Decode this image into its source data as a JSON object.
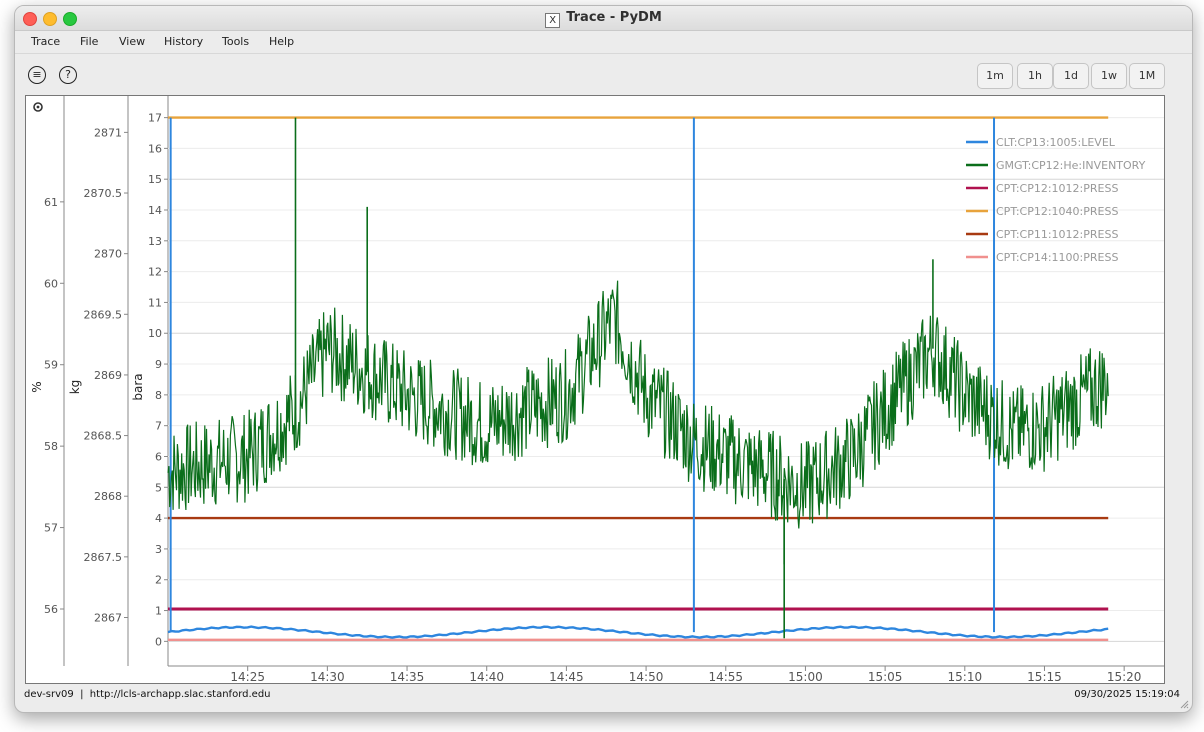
{
  "window": {
    "title": "Trace - PyDM",
    "x11_glyph": "X"
  },
  "menu": [
    "Trace",
    "File",
    "View",
    "History",
    "Tools",
    "Help"
  ],
  "toolbar": {
    "left_icons": [
      {
        "name": "comment-icon",
        "glyph": "≡"
      },
      {
        "name": "help-icon",
        "glyph": "?"
      }
    ],
    "range_buttons": [
      "1m",
      "1h",
      "1d",
      "1w",
      "1M"
    ]
  },
  "plot": {
    "settings_icon": "gear-icon",
    "axes": [
      {
        "label": "%",
        "min": 55.3,
        "max": 62.3,
        "ticks": [
          "56",
          "57",
          "58",
          "59",
          "60",
          "61"
        ]
      },
      {
        "label": "kg",
        "min": 2866.6,
        "max": 2871.3,
        "ticks": [
          "2867",
          "2867.5",
          "2868",
          "2868.5",
          "2869",
          "2869.5",
          "2870",
          "2870.5",
          "2871"
        ]
      },
      {
        "label": "bara",
        "min": -0.8,
        "max": 17.7,
        "ticks": [
          "0",
          "1",
          "2",
          "3",
          "4",
          "5",
          "6",
          "7",
          "8",
          "9",
          "10",
          "11",
          "12",
          "13",
          "14",
          "15",
          "16",
          "17"
        ]
      }
    ],
    "x_ticks": [
      "14:25",
      "14:30",
      "14:35",
      "14:40",
      "14:45",
      "14:50",
      "14:55",
      "15:00",
      "15:05",
      "15:10",
      "15:15",
      "15:20"
    ]
  },
  "chart_data": {
    "type": "line",
    "x_axis": {
      "type": "time",
      "start": "14:20:00",
      "end": "15:22:30",
      "data_end": "15:19:00",
      "ticks": [
        "14:25",
        "14:30",
        "14:35",
        "14:40",
        "14:45",
        "14:50",
        "14:55",
        "15:00",
        "15:05",
        "15:10",
        "15:15",
        "15:20"
      ]
    },
    "y_axes": [
      {
        "label": "%",
        "range": [
          55.3,
          62.3
        ]
      },
      {
        "label": "kg",
        "range": [
          2866.6,
          2871.3
        ]
      },
      {
        "label": "bara",
        "range": [
          -0.8,
          17.7
        ]
      }
    ],
    "grid": true,
    "legend": {
      "placement": "top-right",
      "entries": [
        {
          "name": "CLT:CP13:1005:LEVEL",
          "color": "#2e86de"
        },
        {
          "name": "GMGT:CP12:He:INVENTORY",
          "color": "#0b6e1b"
        },
        {
          "name": "CPT:CP12:1012:PRESS",
          "color": "#b0124f"
        },
        {
          "name": "CPT:CP12:1040:PRESS",
          "color": "#e8a33c"
        },
        {
          "name": "CPT:CP11:1012:PRESS",
          "color": "#a83a12"
        },
        {
          "name": "CPT:CP14:1100:PRESS",
          "color": "#f0908e"
        }
      ]
    },
    "series": [
      {
        "name": "CLT:CP13:1005:LEVEL",
        "color": "#2e86de",
        "level_bara_approx": 0.3,
        "spikes": [
          "14:20:10",
          "14:53:00",
          "15:11:50"
        ],
        "spike_top_bara": 17.0
      },
      {
        "name": "GMGT:CP12:He:INVENTORY",
        "color": "#0b6e1b",
        "x_min": [
          "14:20",
          "14:25",
          "14:28",
          "14:30",
          "14:35",
          "14:40",
          "14:45",
          "14:48",
          "14:50",
          "14:53",
          "14:55",
          "15:00",
          "15:03",
          "15:05",
          "15:08",
          "15:10",
          "15:13",
          "15:15",
          "15:19"
        ],
        "y_bara": [
          5.5,
          6.0,
          7.5,
          9.5,
          8.0,
          7.0,
          8.0,
          10.5,
          8.0,
          6.5,
          6.0,
          5.0,
          6.0,
          7.5,
          9.5,
          8.0,
          6.8,
          7.0,
          8.5
        ],
        "spikes_bara": [
          17.0,
          14.1,
          0.1,
          2.5,
          12.4
        ]
      },
      {
        "name": "CPT:CP12:1012:PRESS",
        "color": "#b0124f",
        "level_bara": 1.05
      },
      {
        "name": "CPT:CP12:1040:PRESS",
        "color": "#e8a33c",
        "level_bara": 17.0
      },
      {
        "name": "CPT:CP11:1012:PRESS",
        "color": "#a83a12",
        "level_bara": 4.0
      },
      {
        "name": "CPT:CP14:1100:PRESS",
        "color": "#f0908e",
        "level_bara": 0.05
      }
    ]
  },
  "status": {
    "left": "dev-srv09  |  http://lcls-archapp.slac.stanford.edu",
    "right": "09/30/2025 15:19:04"
  }
}
